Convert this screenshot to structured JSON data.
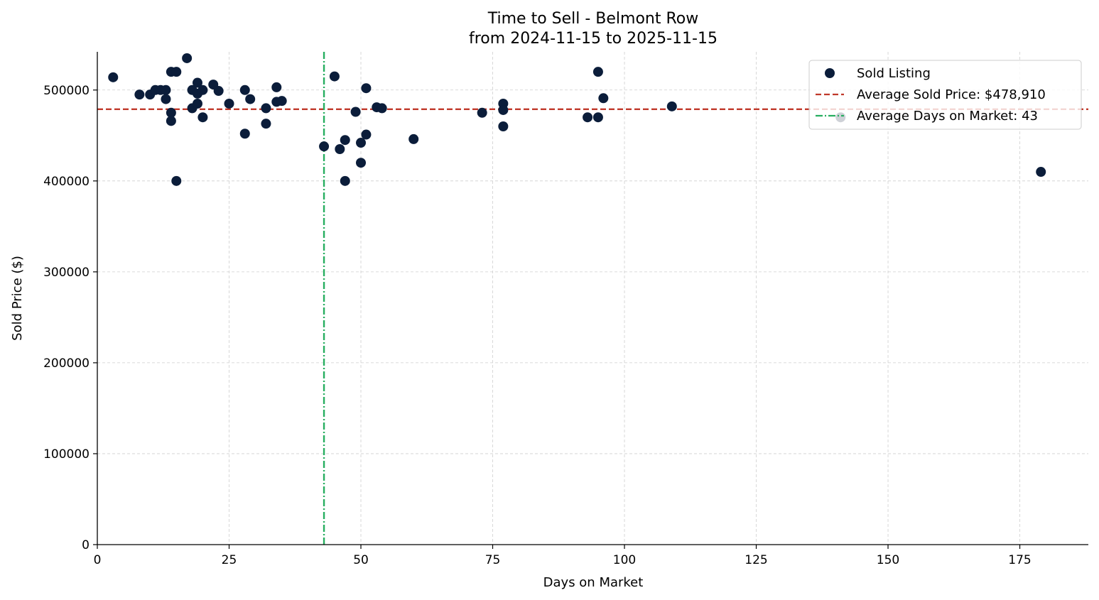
{
  "chart_data": {
    "type": "scatter",
    "title_line1": "Time to Sell - Belmont Row",
    "title_line2": "from 2024-11-15 to 2025-11-15",
    "xlabel": "Days on Market",
    "ylabel": "Sold Price ($)",
    "xlim": [
      0,
      188
    ],
    "ylim": [
      0,
      542000
    ],
    "x_ticks": [
      0,
      25,
      50,
      75,
      100,
      125,
      150,
      175
    ],
    "y_ticks": [
      0,
      100000,
      200000,
      300000,
      400000,
      500000
    ],
    "x_tick_labels": [
      "0",
      "25",
      "50",
      "75",
      "100",
      "125",
      "150",
      "175"
    ],
    "y_tick_labels": [
      "0",
      "100000",
      "200000",
      "300000",
      "400000",
      "500000"
    ],
    "grid": true,
    "legend_position": "top-right",
    "series": [
      {
        "name": "Sold Listing",
        "color": "#0b1d3a",
        "points": [
          [
            3,
            514000
          ],
          [
            8,
            495000
          ],
          [
            10,
            495000
          ],
          [
            11,
            500000
          ],
          [
            12,
            500000
          ],
          [
            13,
            500000
          ],
          [
            13,
            490000
          ],
          [
            14,
            520000
          ],
          [
            14,
            475000
          ],
          [
            14,
            466000
          ],
          [
            15,
            520000
          ],
          [
            15,
            400000
          ],
          [
            17,
            535000
          ],
          [
            18,
            500000
          ],
          [
            18,
            480000
          ],
          [
            19,
            508000
          ],
          [
            19,
            496000
          ],
          [
            19,
            485000
          ],
          [
            20,
            500000
          ],
          [
            20,
            470000
          ],
          [
            22,
            506000
          ],
          [
            23,
            499000
          ],
          [
            25,
            485000
          ],
          [
            28,
            500000
          ],
          [
            28,
            452000
          ],
          [
            29,
            490000
          ],
          [
            32,
            480000
          ],
          [
            32,
            463000
          ],
          [
            34,
            503000
          ],
          [
            34,
            487000
          ],
          [
            35,
            488000
          ],
          [
            43,
            438000
          ],
          [
            45,
            515000
          ],
          [
            46,
            435000
          ],
          [
            47,
            445000
          ],
          [
            47,
            400000
          ],
          [
            49,
            476000
          ],
          [
            50,
            442000
          ],
          [
            50,
            420000
          ],
          [
            51,
            502000
          ],
          [
            51,
            451000
          ],
          [
            53,
            481000
          ],
          [
            54,
            480000
          ],
          [
            60,
            446000
          ],
          [
            73,
            475000
          ],
          [
            77,
            485000
          ],
          [
            77,
            478000
          ],
          [
            77,
            460000
          ],
          [
            93,
            470000
          ],
          [
            95,
            520000
          ],
          [
            95,
            470000
          ],
          [
            96,
            491000
          ],
          [
            109,
            482000
          ],
          [
            141,
            470000
          ],
          [
            179,
            410000
          ]
        ]
      }
    ],
    "reference_lines": [
      {
        "name": "Average Sold Price: $478,910",
        "orientation": "horizontal",
        "value": 478910,
        "color": "#c0392b",
        "style": "dashed"
      },
      {
        "name": "Average Days on Market: 43",
        "orientation": "vertical",
        "value": 43,
        "color": "#27ae60",
        "style": "dashdot"
      }
    ],
    "legend": [
      {
        "label": "Sold Listing",
        "kind": "marker",
        "color": "#0b1d3a"
      },
      {
        "label": "Average Sold Price: $478,910",
        "kind": "dashed",
        "color": "#c0392b"
      },
      {
        "label": "Average Days on Market: 43",
        "kind": "dashdot",
        "color": "#27ae60"
      }
    ]
  }
}
